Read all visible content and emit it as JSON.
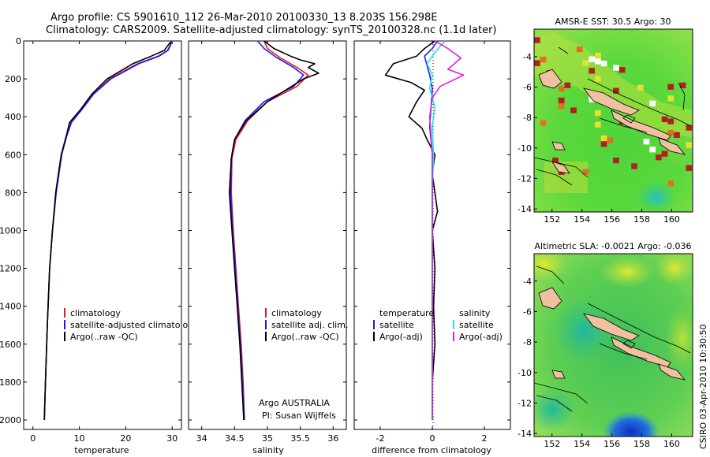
{
  "header": {
    "line1": "Argo profile: CS 5901610_112 26-Mar-2010 20100330_13 8.203S 156.298E",
    "line2": "Climatology: CARS2009. Satellite-adjusted climatology: synTS_20100328.nc (1.1d later)"
  },
  "side_label": "CSIRO 03-Apr-2010 10:30:50",
  "colors": {
    "climatology": "#e41a1c",
    "satellite": "#1a1aff",
    "argo": "#000000",
    "salinity_satellite": "#22e5e5",
    "salinity_argo": "#e01ee0"
  },
  "chart_data": [
    {
      "type": "line",
      "xlabel": "temperature",
      "ylabel": "",
      "xlim": [
        -2,
        32
      ],
      "ylim": [
        2050,
        0
      ],
      "xticks": [
        0,
        10,
        20,
        30
      ],
      "yticks": [
        0,
        200,
        400,
        600,
        800,
        1000,
        1200,
        1400,
        1600,
        1800,
        2000
      ],
      "legend": [
        "climatology",
        "satellite-adjusted climatology",
        "Argo(..raw -QC)"
      ],
      "series": [
        {
          "name": "climatology",
          "color": "#e41a1c",
          "x": [
            29.8,
            29.6,
            29.0,
            27.0,
            22.5,
            16.5,
            13.0,
            10.5,
            8.2,
            7.2,
            6.2,
            5.0,
            4.2,
            3.6,
            3.1,
            2.7,
            2.45
          ],
          "y": [
            0,
            20,
            50,
            80,
            120,
            200,
            280,
            360,
            430,
            500,
            600,
            800,
            1000,
            1200,
            1500,
            1800,
            2000
          ]
        },
        {
          "name": "satellite-adjusted climatology",
          "color": "#1a1aff",
          "x": [
            29.9,
            29.7,
            29.1,
            27.2,
            22.8,
            16.8,
            13.1,
            10.6,
            8.3,
            7.3,
            6.2,
            5.0,
            4.2,
            3.6,
            3.1,
            2.7,
            2.45
          ],
          "y": [
            0,
            20,
            50,
            80,
            120,
            200,
            280,
            360,
            430,
            500,
            600,
            800,
            1000,
            1200,
            1500,
            1800,
            2000
          ]
        },
        {
          "name": "Argo(..raw -QC)",
          "color": "#000000",
          "x": [
            29.7,
            29.2,
            28.3,
            25.5,
            21.5,
            16.0,
            12.7,
            10.3,
            7.9,
            7.2,
            6.1,
            4.9,
            4.2,
            3.6,
            3.1,
            2.7,
            2.45
          ],
          "y": [
            5,
            20,
            50,
            80,
            120,
            200,
            280,
            360,
            430,
            500,
            600,
            800,
            1000,
            1200,
            1500,
            1800,
            2000
          ]
        }
      ]
    },
    {
      "type": "line",
      "xlabel": "salinity",
      "ylabel": "",
      "xlim": [
        33.8,
        36.2
      ],
      "ylim": [
        2050,
        0
      ],
      "xticks": [
        34,
        34.5,
        35,
        35.5,
        36
      ],
      "legend": [
        "climatology",
        "satellite adj. clim.",
        "Argo(..raw -QC)"
      ],
      "annotations": [
        "Argo AUSTRALIA",
        "PI: Susan Wijffels"
      ],
      "series": [
        {
          "name": "climatology",
          "color": "#e41a1c",
          "x": [
            34.95,
            35.0,
            35.2,
            35.45,
            35.62,
            35.45,
            35.0,
            34.7,
            34.52,
            34.46,
            34.45,
            34.48,
            34.52,
            34.56,
            34.6,
            34.63,
            34.65
          ],
          "y": [
            0,
            40,
            90,
            140,
            180,
            240,
            320,
            420,
            520,
            620,
            800,
            1000,
            1200,
            1400,
            1600,
            1800,
            2000
          ]
        },
        {
          "name": "satellite adj. clim.",
          "color": "#1a1aff",
          "x": [
            34.85,
            34.95,
            35.15,
            35.4,
            35.55,
            35.4,
            34.95,
            34.66,
            34.5,
            34.45,
            34.44,
            34.47,
            34.51,
            34.55,
            34.59,
            34.62,
            34.65
          ],
          "y": [
            0,
            40,
            90,
            140,
            180,
            240,
            320,
            420,
            520,
            620,
            800,
            1000,
            1200,
            1400,
            1600,
            1800,
            2000
          ]
        },
        {
          "name": "Argo(..raw -QC)",
          "color": "#000000",
          "x": [
            34.95,
            35.1,
            35.35,
            35.5,
            35.72,
            35.62,
            35.78,
            35.55,
            35.0,
            34.68,
            34.5,
            34.45,
            34.42,
            34.46,
            34.5,
            34.54,
            34.58,
            34.61,
            34.64
          ],
          "y": [
            0,
            40,
            80,
            100,
            120,
            140,
            170,
            200,
            320,
            420,
            520,
            620,
            800,
            1000,
            1200,
            1400,
            1600,
            1800,
            2000
          ]
        }
      ]
    },
    {
      "type": "line",
      "xlabel": "difference from climatology",
      "ylabel": "",
      "xlim": [
        -3,
        3
      ],
      "ylim": [
        2050,
        0
      ],
      "xticks": [
        -2,
        0,
        2
      ],
      "legend_temperature": [
        "temperature",
        "satellite",
        "Argo(-adj)"
      ],
      "legend_salinity": [
        "salinity",
        "satellite",
        "Argo(-adj)"
      ],
      "series": [
        {
          "name": "satellite",
          "color": "#1a1aff",
          "x": [
            0.2,
            0.0,
            -0.3,
            -0.2,
            -0.1,
            0.0,
            -0.05,
            -0.1,
            0.0,
            0.0,
            0.0,
            0.0,
            0.0,
            0.0,
            0.0,
            0.0
          ],
          "y": [
            0,
            40,
            80,
            130,
            180,
            250,
            350,
            450,
            600,
            800,
            1000,
            1200,
            1400,
            1600,
            1800,
            2000
          ]
        },
        {
          "name": "Argo(-adj)",
          "color": "#000000",
          "x": [
            0.1,
            -0.3,
            -0.6,
            -1.5,
            -1.8,
            -0.8,
            -0.3,
            -0.6,
            -0.9,
            -0.4,
            -0.2,
            0.1,
            0.0,
            0.1,
            0.2,
            0.0,
            0.1,
            0.05,
            0.1,
            0.0,
            0.0
          ],
          "y": [
            0,
            40,
            80,
            120,
            180,
            220,
            260,
            320,
            400,
            460,
            520,
            600,
            700,
            800,
            900,
            1000,
            1200,
            1400,
            1600,
            1800,
            2000
          ]
        },
        {
          "name": "salinity satellite",
          "color": "#22e5e5",
          "x": [
            0.5,
            0.1,
            -0.2,
            0.0,
            -0.1,
            0.1,
            0.0,
            0.05,
            0.0,
            0.0,
            0.0,
            0.0,
            0.0,
            0.0
          ],
          "y": [
            0,
            60,
            120,
            180,
            250,
            350,
            450,
            600,
            800,
            1000,
            1200,
            1400,
            1600,
            2000
          ]
        },
        {
          "name": "salinity Argo(-adj)",
          "color": "#e01ee0",
          "x": [
            0.1,
            0.6,
            1.1,
            0.6,
            1.2,
            0.3,
            0.0,
            -0.1,
            0.0,
            0.0,
            0.0,
            0.0,
            0.0
          ],
          "y": [
            0,
            40,
            90,
            150,
            180,
            240,
            300,
            400,
            600,
            800,
            1200,
            1600,
            2000
          ]
        }
      ]
    },
    {
      "type": "heatmap",
      "title": "AMSR-E SST: 30.5  Argo: 30",
      "xlim": [
        150.8,
        161.4
      ],
      "ylim": [
        -14.2,
        -2.2
      ],
      "xticks": [
        152,
        154,
        156,
        158,
        160
      ],
      "yticks": [
        -4,
        -6,
        -8,
        -10,
        -12,
        -14
      ]
    },
    {
      "type": "heatmap",
      "title": "Altimetric SLA: -0.0021  Argo: -0.036",
      "xlim": [
        150.8,
        161.4
      ],
      "ylim": [
        -14.2,
        -2.2
      ],
      "xticks": [
        152,
        154,
        156,
        158,
        160
      ],
      "yticks": [
        -4,
        -6,
        -8,
        -10,
        -12,
        -14
      ]
    }
  ]
}
